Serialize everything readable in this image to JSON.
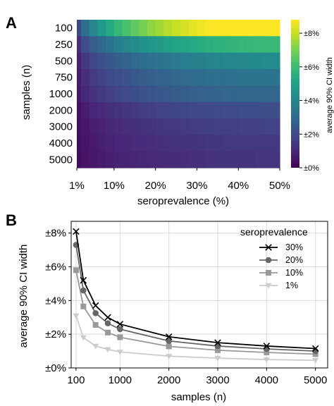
{
  "chart_data": [
    {
      "panel": "A",
      "type": "heatmap",
      "xlabel": "seroprevalence (%)",
      "ylabel": "samples (n)",
      "x_tick_labels": [
        "1%",
        "10%",
        "20%",
        "30%",
        "40%",
        "50%"
      ],
      "x_tick_values": [
        1,
        10,
        20,
        30,
        40,
        50
      ],
      "x": [
        1,
        3,
        5,
        7,
        9,
        11,
        13,
        15,
        17,
        19,
        21,
        23,
        25,
        27,
        29,
        31,
        33,
        35,
        37,
        39,
        41,
        43,
        45,
        47,
        49,
        50
      ],
      "y_categories": [
        "100",
        "250",
        "500",
        "750",
        "1000",
        "2000",
        "3000",
        "4000",
        "5000"
      ],
      "y_values": [
        100,
        250,
        500,
        750,
        1000,
        2000,
        3000,
        4000,
        5000
      ],
      "colorbar": {
        "title": "average 90% CI width",
        "tick_labels": [
          "±0%",
          "±2%",
          "±4%",
          "±6%",
          "±8%"
        ],
        "tick_values": [
          0,
          2,
          4,
          6,
          8
        ],
        "range": [
          0,
          8.8
        ],
        "colormap": "viridis"
      }
    },
    {
      "panel": "B",
      "type": "line",
      "xlabel": "samples (n)",
      "ylabel": "average 90% CI width",
      "x": [
        100,
        250,
        500,
        750,
        1000,
        2000,
        3000,
        4000,
        5000
      ],
      "xlim": [
        0,
        5250
      ],
      "ylim": [
        0,
        8.7
      ],
      "x_tick_labels": [
        "100",
        "1000",
        "2000",
        "3000",
        "4000",
        "5000"
      ],
      "x_tick_values": [
        100,
        1000,
        2000,
        3000,
        4000,
        5000
      ],
      "y_tick_labels": [
        "±0%",
        "±2%",
        "±4%",
        "±6%",
        "±8%"
      ],
      "y_tick_values": [
        0,
        2,
        4,
        6,
        8
      ],
      "grid": true,
      "legend": {
        "title": "seroprevalence",
        "placement": "top-right"
      },
      "series": [
        {
          "name": "30%",
          "color": "#000000",
          "marker": "x",
          "values": [
            8.1,
            5.2,
            3.7,
            3.0,
            2.6,
            1.85,
            1.5,
            1.3,
            1.15
          ]
        },
        {
          "name": "20%",
          "color": "#666666",
          "marker": "circle",
          "values": [
            7.3,
            4.6,
            3.25,
            2.65,
            2.3,
            1.6,
            1.3,
            1.13,
            1.0
          ]
        },
        {
          "name": "10%",
          "color": "#999999",
          "marker": "square",
          "values": [
            5.8,
            3.65,
            2.55,
            2.1,
            1.82,
            1.28,
            1.05,
            0.92,
            0.82
          ]
        },
        {
          "name": "1%",
          "color": "#cccccc",
          "marker": "triangle-down",
          "values": [
            3.1,
            1.8,
            1.3,
            1.1,
            0.95,
            0.7,
            0.58,
            0.5,
            0.45
          ]
        }
      ]
    }
  ],
  "panels": {
    "a_letter": "A",
    "b_letter": "B"
  }
}
